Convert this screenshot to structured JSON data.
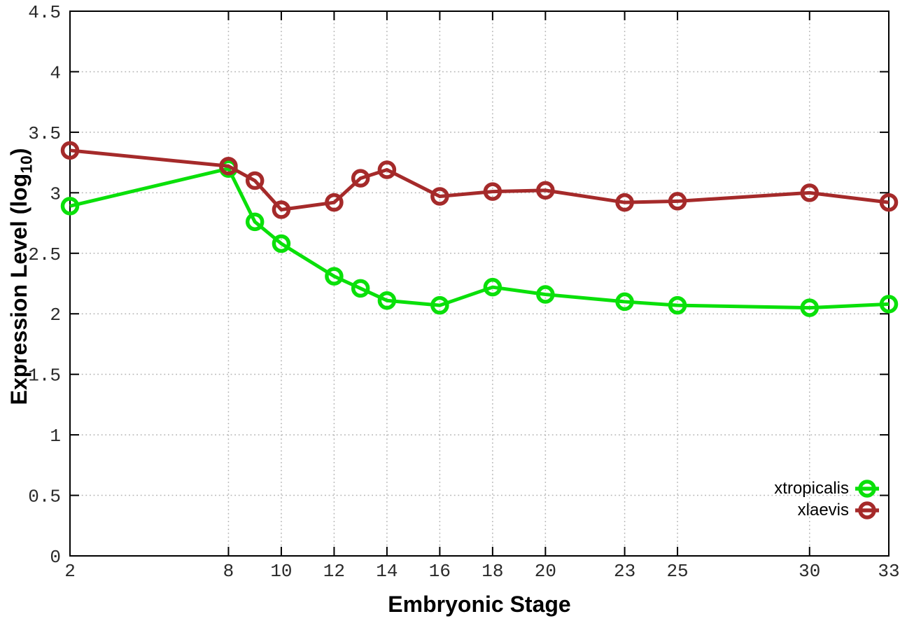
{
  "chart_data": {
    "type": "line",
    "title": "",
    "xlabel": "Embryonic Stage",
    "ylabel": {
      "prefix": "Expression Level (log",
      "sub": "10",
      "suffix": ")"
    },
    "xlim": [
      2,
      33
    ],
    "ylim": [
      0,
      4.5
    ],
    "grid": true,
    "legend_position": "bottom-right",
    "x": [
      2,
      8,
      9,
      10,
      12,
      13,
      14,
      16,
      18,
      20,
      23,
      25,
      30,
      33
    ],
    "series": [
      {
        "name": "xtropicalis",
        "color": "#0ae00a",
        "marker": "open-circle",
        "values": [
          2.89,
          3.2,
          2.76,
          2.58,
          2.31,
          2.21,
          2.11,
          2.07,
          2.22,
          2.16,
          2.1,
          2.07,
          2.05,
          2.08
        ]
      },
      {
        "name": "xlaevis",
        "color": "#a52a2a",
        "marker": "open-circle",
        "values": [
          3.35,
          3.22,
          3.1,
          2.86,
          2.92,
          3.12,
          3.19,
          2.97,
          3.01,
          3.02,
          2.92,
          2.93,
          3.0,
          2.92
        ]
      }
    ],
    "x_ticks": {
      "values": [
        2,
        8,
        10,
        12,
        14,
        16,
        18,
        20,
        23,
        25,
        30,
        33
      ],
      "labels": [
        "2",
        "8",
        "10",
        "12",
        "14",
        "16",
        "18",
        "20",
        "23",
        "25",
        "30",
        "33"
      ]
    },
    "y_ticks": {
      "values": [
        0,
        0.5,
        1,
        1.5,
        2,
        2.5,
        3,
        3.5,
        4,
        4.5
      ],
      "labels": [
        "0",
        "0.5",
        "1",
        "1.5",
        "2",
        "2.5",
        "3",
        "3.5",
        "4",
        "4.5"
      ]
    },
    "colors": {
      "background": "#ffffff",
      "axis": "#000000",
      "grid": "#b4b4b4",
      "tick_label": "#2a2a2a",
      "text": "#000000"
    }
  }
}
